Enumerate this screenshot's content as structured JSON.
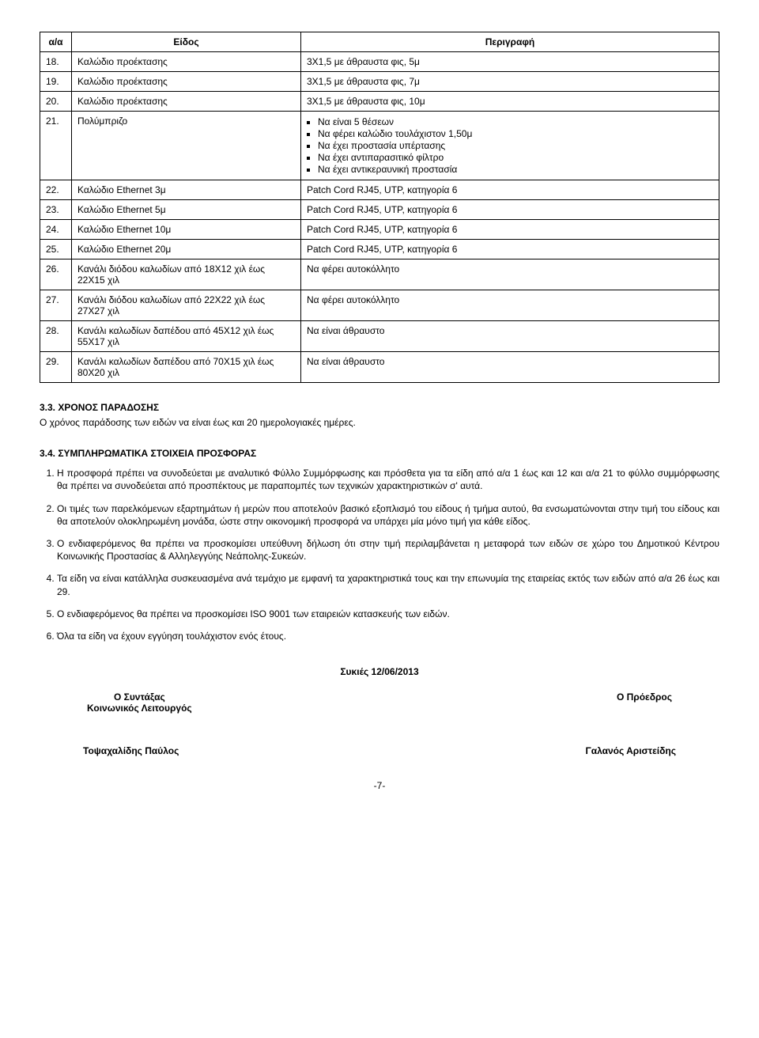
{
  "table": {
    "headers": {
      "num": "α/α",
      "name": "Είδος",
      "desc": "Περιγραφή"
    },
    "rows": [
      {
        "num": "18.",
        "name": "Καλώδιο προέκτασης",
        "desc": "3Χ1,5 με άθραυστα φις, 5μ"
      },
      {
        "num": "19.",
        "name": "Καλώδιο προέκτασης",
        "desc": "3Χ1,5 με άθραυστα φις, 7μ"
      },
      {
        "num": "20.",
        "name": "Καλώδιο προέκτασης",
        "desc": "3Χ1,5 με άθραυστα φις, 10μ"
      },
      {
        "num": "21.",
        "name": "Πολύμπριζο",
        "desc_list": [
          "Να είναι 5 θέσεων",
          "Να φέρει καλώδιο τουλάχιστον 1,50μ",
          "Να έχει προστασία υπέρτασης",
          "Να έχει αντιπαρασιτικό φίλτρο",
          "Να έχει αντικεραυνική προστασία"
        ]
      },
      {
        "num": "22.",
        "name": "Καλώδιο Ethernet 3μ",
        "desc": "Patch Cord RJ45, UTP, κατηγορία 6"
      },
      {
        "num": "23.",
        "name": "Καλώδιο Ethernet 5μ",
        "desc": "Patch Cord RJ45, UTP, κατηγορία 6"
      },
      {
        "num": "24.",
        "name": "Καλώδιο Ethernet 10μ",
        "desc": "Patch Cord RJ45, UTP, κατηγορία 6"
      },
      {
        "num": "25.",
        "name": "Καλώδιο Ethernet 20μ",
        "desc": "Patch Cord RJ45, UTP, κατηγορία 6"
      },
      {
        "num": "26.",
        "name": "Κανάλι διόδου καλωδίων από 18Χ12 χιλ έως 22Χ15 χιλ",
        "desc": "Να φέρει αυτοκόλλητο"
      },
      {
        "num": "27.",
        "name": "Κανάλι διόδου καλωδίων από 22Χ22 χιλ έως 27Χ27 χιλ",
        "desc": "Να φέρει αυτοκόλλητο"
      },
      {
        "num": "28.",
        "name": "Κανάλι καλωδίων δαπέδου από 45Χ12 χιλ έως 55Χ17 χιλ",
        "desc": "Να είναι άθραυστο"
      },
      {
        "num": "29.",
        "name": "Κανάλι καλωδίων δαπέδου από 70Χ15 χιλ έως 80Χ20 χιλ",
        "desc": "Να είναι άθραυστο"
      }
    ]
  },
  "section33": {
    "heading": "3.3. ΧΡΟΝΟΣ ΠΑΡΑΔΟΣΗΣ",
    "text": "Ο χρόνος παράδοσης των ειδών να είναι έως και 20 ημερολογιακές ημέρες."
  },
  "section34": {
    "heading": "3.4. ΣΥΜΠΛΗΡΩΜΑΤΙΚΑ ΣΤΟΙΧΕΙΑ ΠΡΟΣΦΟΡΑΣ",
    "items": [
      "Η προσφορά πρέπει να συνοδεύεται με αναλυτικό Φύλλο Συμμόρφωσης και πρόσθετα για τα είδη από α/α 1 έως και 12 και α/α 21 το φύλλο συμμόρφωσης θα πρέπει να συνοδεύεται από προσπέκτους με παραπομπές των τεχνικών χαρακτηριστικών σ' αυτά.",
      "Οι τιμές των παρελκόμενων εξαρτημάτων ή μερών που αποτελούν βασικό εξοπλισμό του είδους ή τμήμα αυτού, θα ενσωματώνονται στην τιμή του είδους και θα αποτελούν ολοκληρωμένη μονάδα, ώστε στην οικονομική προσφορά να υπάρχει μία μόνο τιμή για κάθε είδος.",
      "Ο ενδιαφερόμενος θα πρέπει να προσκομίσει υπεύθυνη δήλωση ότι στην τιμή περιλαμβάνεται η μεταφορά των ειδών σε χώρο του Δημοτικού Κέντρου Κοινωνικής Προστασίας & Αλληλεγγύης Νεάπολης-Συκεών.",
      "Τα είδη να είναι κατάλληλα συσκευασμένα ανά τεμάχιο με εμφανή τα χαρακτηριστικά τους και την επωνυμία της εταιρείας εκτός των ειδών από α/α 26 έως και 29.",
      "Ο ενδιαφερόμενος θα πρέπει να προσκομίσει ISO 9001 των εταιρειών κατασκευής των ειδών.",
      "Όλα τα είδη να έχουν εγγύηση τουλάχιστον ενός έτους."
    ]
  },
  "signatures": {
    "date": "Συκιές 12/06/2013",
    "left_title": "Ο Συντάξας",
    "left_sub": "Κοινωνικός Λειτουργός",
    "right_title": "Ο Πρόεδρος",
    "left_name": "Τοψαχαλίδης Παύλος",
    "right_name": "Γαλανός Αριστείδης"
  },
  "page_number": "-7-"
}
